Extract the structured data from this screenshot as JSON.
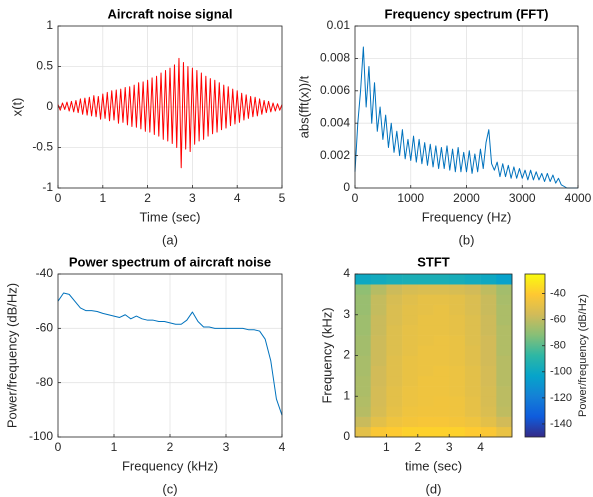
{
  "chart_data": [
    {
      "type": "line",
      "title": "Aircraft noise signal",
      "xlabel": "Time (sec)",
      "ylabel": "x(t)",
      "caption": "(a)",
      "color": "#ff0000",
      "grid": true,
      "xlim": [
        0,
        5
      ],
      "xticks": [
        0,
        1,
        2,
        3,
        4,
        5
      ],
      "ylim": [
        -1,
        1
      ],
      "yticks": [
        -1,
        -0.5,
        0,
        0.5,
        1
      ],
      "x": [
        0,
        0.05,
        0.1,
        0.15,
        0.2,
        0.25,
        0.3,
        0.35,
        0.4,
        0.45,
        0.5,
        0.55,
        0.6,
        0.65,
        0.7,
        0.75,
        0.8,
        0.85,
        0.9,
        0.95,
        1,
        1.05,
        1.1,
        1.15,
        1.2,
        1.25,
        1.3,
        1.35,
        1.4,
        1.45,
        1.5,
        1.55,
        1.6,
        1.65,
        1.7,
        1.75,
        1.8,
        1.85,
        1.9,
        1.95,
        2,
        2.05,
        2.1,
        2.15,
        2.2,
        2.25,
        2.3,
        2.35,
        2.4,
        2.45,
        2.5,
        2.55,
        2.6,
        2.65,
        2.7,
        2.75,
        2.8,
        2.85,
        2.9,
        2.95,
        3,
        3.05,
        3.1,
        3.15,
        3.2,
        3.25,
        3.3,
        3.35,
        3.4,
        3.45,
        3.5,
        3.55,
        3.6,
        3.65,
        3.7,
        3.75,
        3.8,
        3.85,
        3.9,
        3.95,
        4,
        4.05,
        4.1,
        4.15,
        4.2,
        4.25,
        4.3,
        4.35,
        4.4,
        4.45,
        4.5,
        4.55,
        4.6,
        4.65,
        4.7,
        4.75,
        4.8,
        4.85,
        4.9,
        4.95,
        5
      ],
      "values": [
        0.03,
        -0.04,
        0.05,
        -0.03,
        0.06,
        -0.05,
        0.07,
        -0.06,
        0.08,
        -0.07,
        0.1,
        -0.09,
        0.11,
        -0.1,
        0.12,
        -0.11,
        0.14,
        -0.12,
        0.13,
        -0.15,
        0.16,
        -0.14,
        0.18,
        -0.17,
        0.2,
        -0.16,
        0.21,
        -0.2,
        0.22,
        -0.19,
        0.24,
        -0.22,
        0.25,
        -0.24,
        0.27,
        -0.25,
        0.3,
        -0.27,
        0.31,
        -0.3,
        0.33,
        -0.31,
        0.36,
        -0.34,
        0.38,
        -0.36,
        0.42,
        -0.4,
        0.45,
        -0.42,
        0.48,
        -0.45,
        0.52,
        -0.5,
        0.6,
        -0.75,
        0.55,
        -0.52,
        0.5,
        -0.55,
        0.48,
        -0.46,
        0.45,
        -0.42,
        0.42,
        -0.4,
        0.38,
        -0.36,
        0.35,
        -0.33,
        0.33,
        -0.31,
        0.3,
        -0.28,
        0.27,
        -0.26,
        0.25,
        -0.23,
        0.22,
        -0.21,
        0.2,
        -0.19,
        0.17,
        -0.16,
        0.15,
        -0.14,
        0.13,
        -0.12,
        0.12,
        -0.11,
        0.1,
        -0.09,
        0.08,
        -0.07,
        0.07,
        -0.06,
        0.05,
        -0.05,
        0.04,
        -0.04,
        0.03
      ]
    },
    {
      "type": "line",
      "title": "Frequency spectrum (FFT)",
      "xlabel": "Frequency (Hz)",
      "ylabel": "abs(fft(x))/t",
      "caption": "(b)",
      "color": "#0072bd",
      "grid": true,
      "xlim": [
        0,
        4000
      ],
      "xticks": [
        0,
        1000,
        2000,
        3000,
        4000
      ],
      "ylim": [
        0,
        0.01
      ],
      "yticks": [
        0,
        0.002,
        0.004,
        0.006,
        0.008,
        0.01
      ],
      "x": [
        0,
        50,
        100,
        150,
        200,
        250,
        300,
        350,
        400,
        450,
        500,
        550,
        600,
        650,
        700,
        750,
        800,
        850,
        900,
        950,
        1000,
        1050,
        1100,
        1150,
        1200,
        1250,
        1300,
        1350,
        1400,
        1450,
        1500,
        1550,
        1600,
        1650,
        1700,
        1750,
        1800,
        1850,
        1900,
        1950,
        2000,
        2050,
        2100,
        2150,
        2200,
        2250,
        2300,
        2350,
        2400,
        2450,
        2500,
        2550,
        2600,
        2650,
        2700,
        2750,
        2800,
        2850,
        2900,
        2950,
        3000,
        3050,
        3100,
        3150,
        3200,
        3250,
        3300,
        3350,
        3400,
        3450,
        3500,
        3550,
        3600,
        3650,
        3700,
        3750,
        3800,
        3850,
        3900,
        3950,
        4000
      ],
      "values": [
        0.001,
        0.004,
        0.006,
        0.0087,
        0.005,
        0.0075,
        0.004,
        0.0065,
        0.0035,
        0.005,
        0.003,
        0.0045,
        0.0025,
        0.004,
        0.0022,
        0.0035,
        0.002,
        0.0036,
        0.0018,
        0.003,
        0.0017,
        0.0032,
        0.0016,
        0.003,
        0.0015,
        0.0028,
        0.0014,
        0.0027,
        0.0013,
        0.0026,
        0.0012,
        0.0025,
        0.0012,
        0.0026,
        0.0011,
        0.0024,
        0.001,
        0.0025,
        0.001,
        0.0022,
        0.001,
        0.0023,
        0.0009,
        0.0021,
        0.001,
        0.0024,
        0.0012,
        0.0028,
        0.0036,
        0.0015,
        0.0011,
        0.0016,
        0.0007,
        0.0015,
        0.0007,
        0.0014,
        0.0006,
        0.0013,
        0.0006,
        0.0012,
        0.0006,
        0.0011,
        0.0005,
        0.0011,
        0.0005,
        0.001,
        0.0005,
        0.0009,
        0.0004,
        0.0009,
        0.0004,
        0.0008,
        0.0003,
        0.0006,
        0.0002,
        0.0001,
        0,
        0,
        0,
        0,
        0
      ]
    },
    {
      "type": "line",
      "title": "Power spectrum of aircraft noise",
      "xlabel": "Frequency (kHz)",
      "ylabel": "Power/frequency (dB/Hz)",
      "caption": "(c)",
      "color": "#0072bd",
      "grid": true,
      "xlim": [
        0,
        4
      ],
      "xticks": [
        0,
        1,
        2,
        3,
        4
      ],
      "ylim": [
        -100,
        -40
      ],
      "yticks": [
        -100,
        -80,
        -60,
        -40
      ],
      "x": [
        0,
        0.1,
        0.2,
        0.3,
        0.4,
        0.5,
        0.6,
        0.7,
        0.8,
        0.9,
        1,
        1.1,
        1.2,
        1.3,
        1.4,
        1.5,
        1.6,
        1.7,
        1.8,
        1.9,
        2,
        2.1,
        2.2,
        2.3,
        2.4,
        2.5,
        2.6,
        2.7,
        2.8,
        2.9,
        3,
        3.1,
        3.2,
        3.3,
        3.4,
        3.5,
        3.6,
        3.7,
        3.8,
        3.9,
        4
      ],
      "values": [
        -50,
        -47,
        -47.5,
        -50,
        -52.5,
        -53.5,
        -53.5,
        -53.8,
        -54.5,
        -55,
        -55.5,
        -56,
        -55,
        -56.5,
        -55.5,
        -56.5,
        -57,
        -57,
        -57.5,
        -57.5,
        -58,
        -58.5,
        -58.5,
        -57,
        -54,
        -57.5,
        -59.5,
        -59.5,
        -60,
        -60,
        -60,
        -60,
        -60,
        -60,
        -60.5,
        -60.5,
        -61,
        -64,
        -72,
        -86,
        -92
      ]
    },
    {
      "type": "heatmap",
      "title": "STFT",
      "xlabel": "time (sec)",
      "ylabel": "Frequency (kHz)",
      "caption": "(d)",
      "clabel": "Power/frequency (dB/Hz)",
      "grid": false,
      "xlim": [
        0,
        5
      ],
      "xticks": [
        1,
        2,
        3,
        4
      ],
      "ylim": [
        0,
        4
      ],
      "yticks": [
        0,
        1,
        2,
        3,
        4
      ],
      "clim": [
        -150,
        -25
      ],
      "cticks": [
        -140,
        -120,
        -100,
        -80,
        -60,
        -40
      ],
      "colormap": [
        "#352a87",
        "#0f5cdd",
        "#1481d6",
        "#06a4ca",
        "#2eb7a4",
        "#87bf77",
        "#d1bb59",
        "#fec832",
        "#f9fb0e"
      ],
      "xbins": [
        0,
        0.5,
        1,
        1.5,
        2,
        2.5,
        3,
        3.5,
        4,
        4.5,
        5
      ],
      "ybins": [
        0,
        0.25,
        0.5,
        0.75,
        1,
        1.25,
        1.5,
        1.75,
        2,
        2.25,
        2.5,
        2.75,
        3,
        3.25,
        3.5,
        3.75,
        4
      ],
      "z": [
        [
          -50,
          -42,
          -40,
          -38,
          -38,
          -38,
          -38,
          -40,
          -42,
          -48
        ],
        [
          -58,
          -50,
          -46,
          -44,
          -43,
          -43,
          -44,
          -46,
          -50,
          -56
        ],
        [
          -62,
          -54,
          -49,
          -46,
          -45,
          -45,
          -46,
          -49,
          -53,
          -60
        ],
        [
          -63,
          -55,
          -50,
          -47,
          -46,
          -45,
          -46,
          -49,
          -54,
          -61
        ],
        [
          -64,
          -55,
          -50,
          -47,
          -46,
          -46,
          -47,
          -50,
          -54,
          -61
        ],
        [
          -64,
          -56,
          -51,
          -48,
          -46,
          -46,
          -47,
          -50,
          -55,
          -62
        ],
        [
          -65,
          -56,
          -51,
          -48,
          -47,
          -46,
          -47,
          -50,
          -55,
          -62
        ],
        [
          -65,
          -57,
          -51,
          -48,
          -47,
          -47,
          -48,
          -51,
          -56,
          -62
        ],
        [
          -66,
          -57,
          -52,
          -49,
          -47,
          -47,
          -48,
          -51,
          -56,
          -63
        ],
        [
          -66,
          -57,
          -52,
          -49,
          -48,
          -47,
          -48,
          -52,
          -56,
          -63
        ],
        [
          -67,
          -58,
          -52,
          -49,
          -48,
          -48,
          -49,
          -52,
          -57,
          -63
        ],
        [
          -67,
          -58,
          -53,
          -50,
          -48,
          -48,
          -49,
          -52,
          -57,
          -64
        ],
        [
          -68,
          -59,
          -53,
          -50,
          -49,
          -48,
          -50,
          -53,
          -58,
          -64
        ],
        [
          -68,
          -59,
          -54,
          -51,
          -49,
          -49,
          -50,
          -53,
          -58,
          -65
        ],
        [
          -70,
          -62,
          -57,
          -54,
          -53,
          -53,
          -54,
          -56,
          -60,
          -66
        ],
        [
          -100,
          -98,
          -96,
          -95,
          -95,
          -95,
          -96,
          -98,
          -100,
          -104
        ]
      ]
    }
  ]
}
